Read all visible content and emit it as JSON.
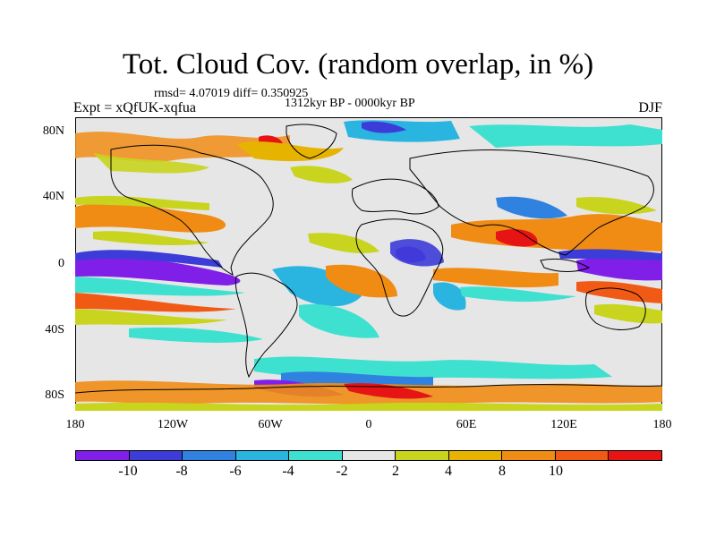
{
  "title": "Tot. Cloud Cov. (random overlap, in %)",
  "stats": "rmsd= 4.07019 diff= 0.350925",
  "period": "1312kyr BP - 0000kyr BP",
  "experiment": "Expt = xQfUK-xqfua",
  "season": "DJF",
  "y_ticks": [
    "80N",
    "40N",
    "0",
    "40S",
    "80S"
  ],
  "x_ticks": [
    "180",
    "120W",
    "60W",
    "0",
    "60E",
    "120E",
    "180"
  ],
  "colorbar": {
    "colors": [
      "#7f1fe8",
      "#3c3cd8",
      "#2f82e0",
      "#2ab4e0",
      "#3ee0d0",
      "#e6e6e6",
      "#c8d41e",
      "#e6b400",
      "#f08c14",
      "#f05a14",
      "#e61414"
    ],
    "labels": [
      "-10",
      "-8",
      "-6",
      "-4",
      "-2",
      "2",
      "4",
      "8",
      "10"
    ]
  }
}
